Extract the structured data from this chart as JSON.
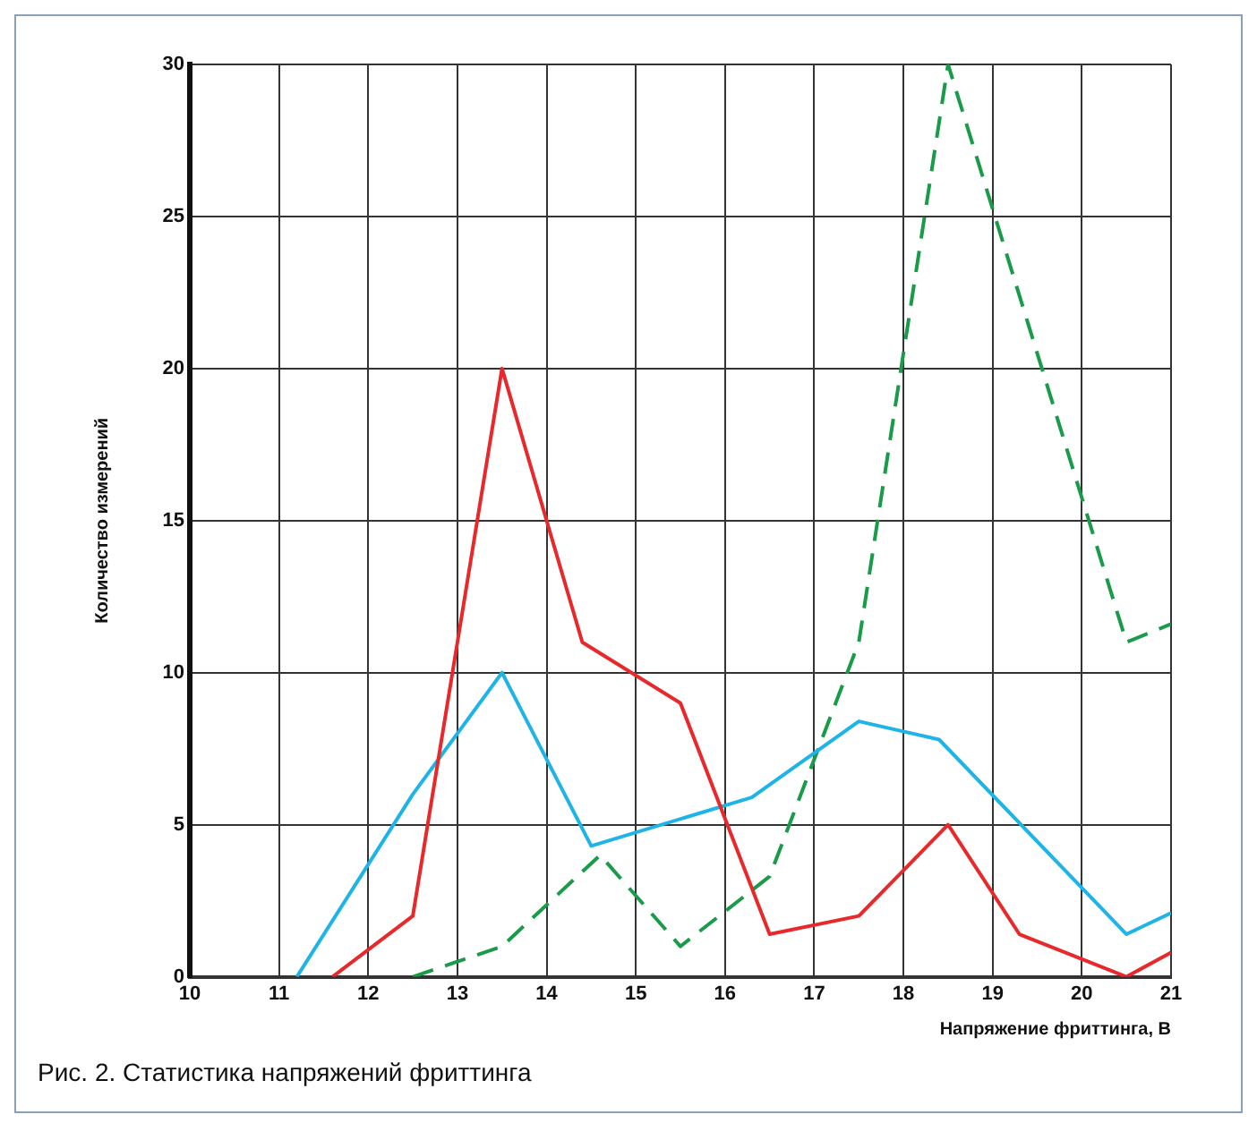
{
  "chart_data": {
    "type": "line",
    "xlabel": "Напряжение фриттинга, В",
    "ylabel": "Количество измерений",
    "annotations": [
      "Рис. 2. Статистика напряжений фриттинга"
    ],
    "xlim": [
      10,
      21
    ],
    "xticks": [
      10,
      11,
      12,
      13,
      14,
      15,
      16,
      17,
      18,
      19,
      20,
      21
    ],
    "ylim": [
      0,
      30
    ],
    "yticks": [
      0,
      5,
      10,
      15,
      20,
      25,
      30
    ],
    "grid": true,
    "legend": false,
    "marker": "none",
    "series": [
      {
        "color": "#e8282b",
        "line_style": "solid",
        "x": [
          11.6,
          12.5,
          13.5,
          14.4,
          15.5,
          16.5,
          17.5,
          18.5,
          19.3,
          20.5,
          21
        ],
        "values": [
          0,
          2,
          20,
          11,
          9,
          1.4,
          2,
          5,
          1.4,
          0,
          0.8
        ]
      },
      {
        "color": "#1fb4e8",
        "line_style": "solid",
        "x": [
          11.2,
          12.5,
          13.5,
          14.5,
          16.3,
          17.5,
          18.4,
          20.5,
          21
        ],
        "values": [
          0,
          6,
          10,
          4.3,
          5.9,
          8.4,
          7.8,
          1.4,
          2.1
        ]
      },
      {
        "color": "#1a9b4a",
        "line_style": "dashed",
        "x": [
          12.5,
          13.5,
          14.6,
          15.5,
          16.5,
          17.5,
          18.5,
          20.5,
          21
        ],
        "values": [
          0,
          1,
          4,
          1,
          3.3,
          11,
          30,
          11,
          11.6
        ]
      }
    ]
  }
}
